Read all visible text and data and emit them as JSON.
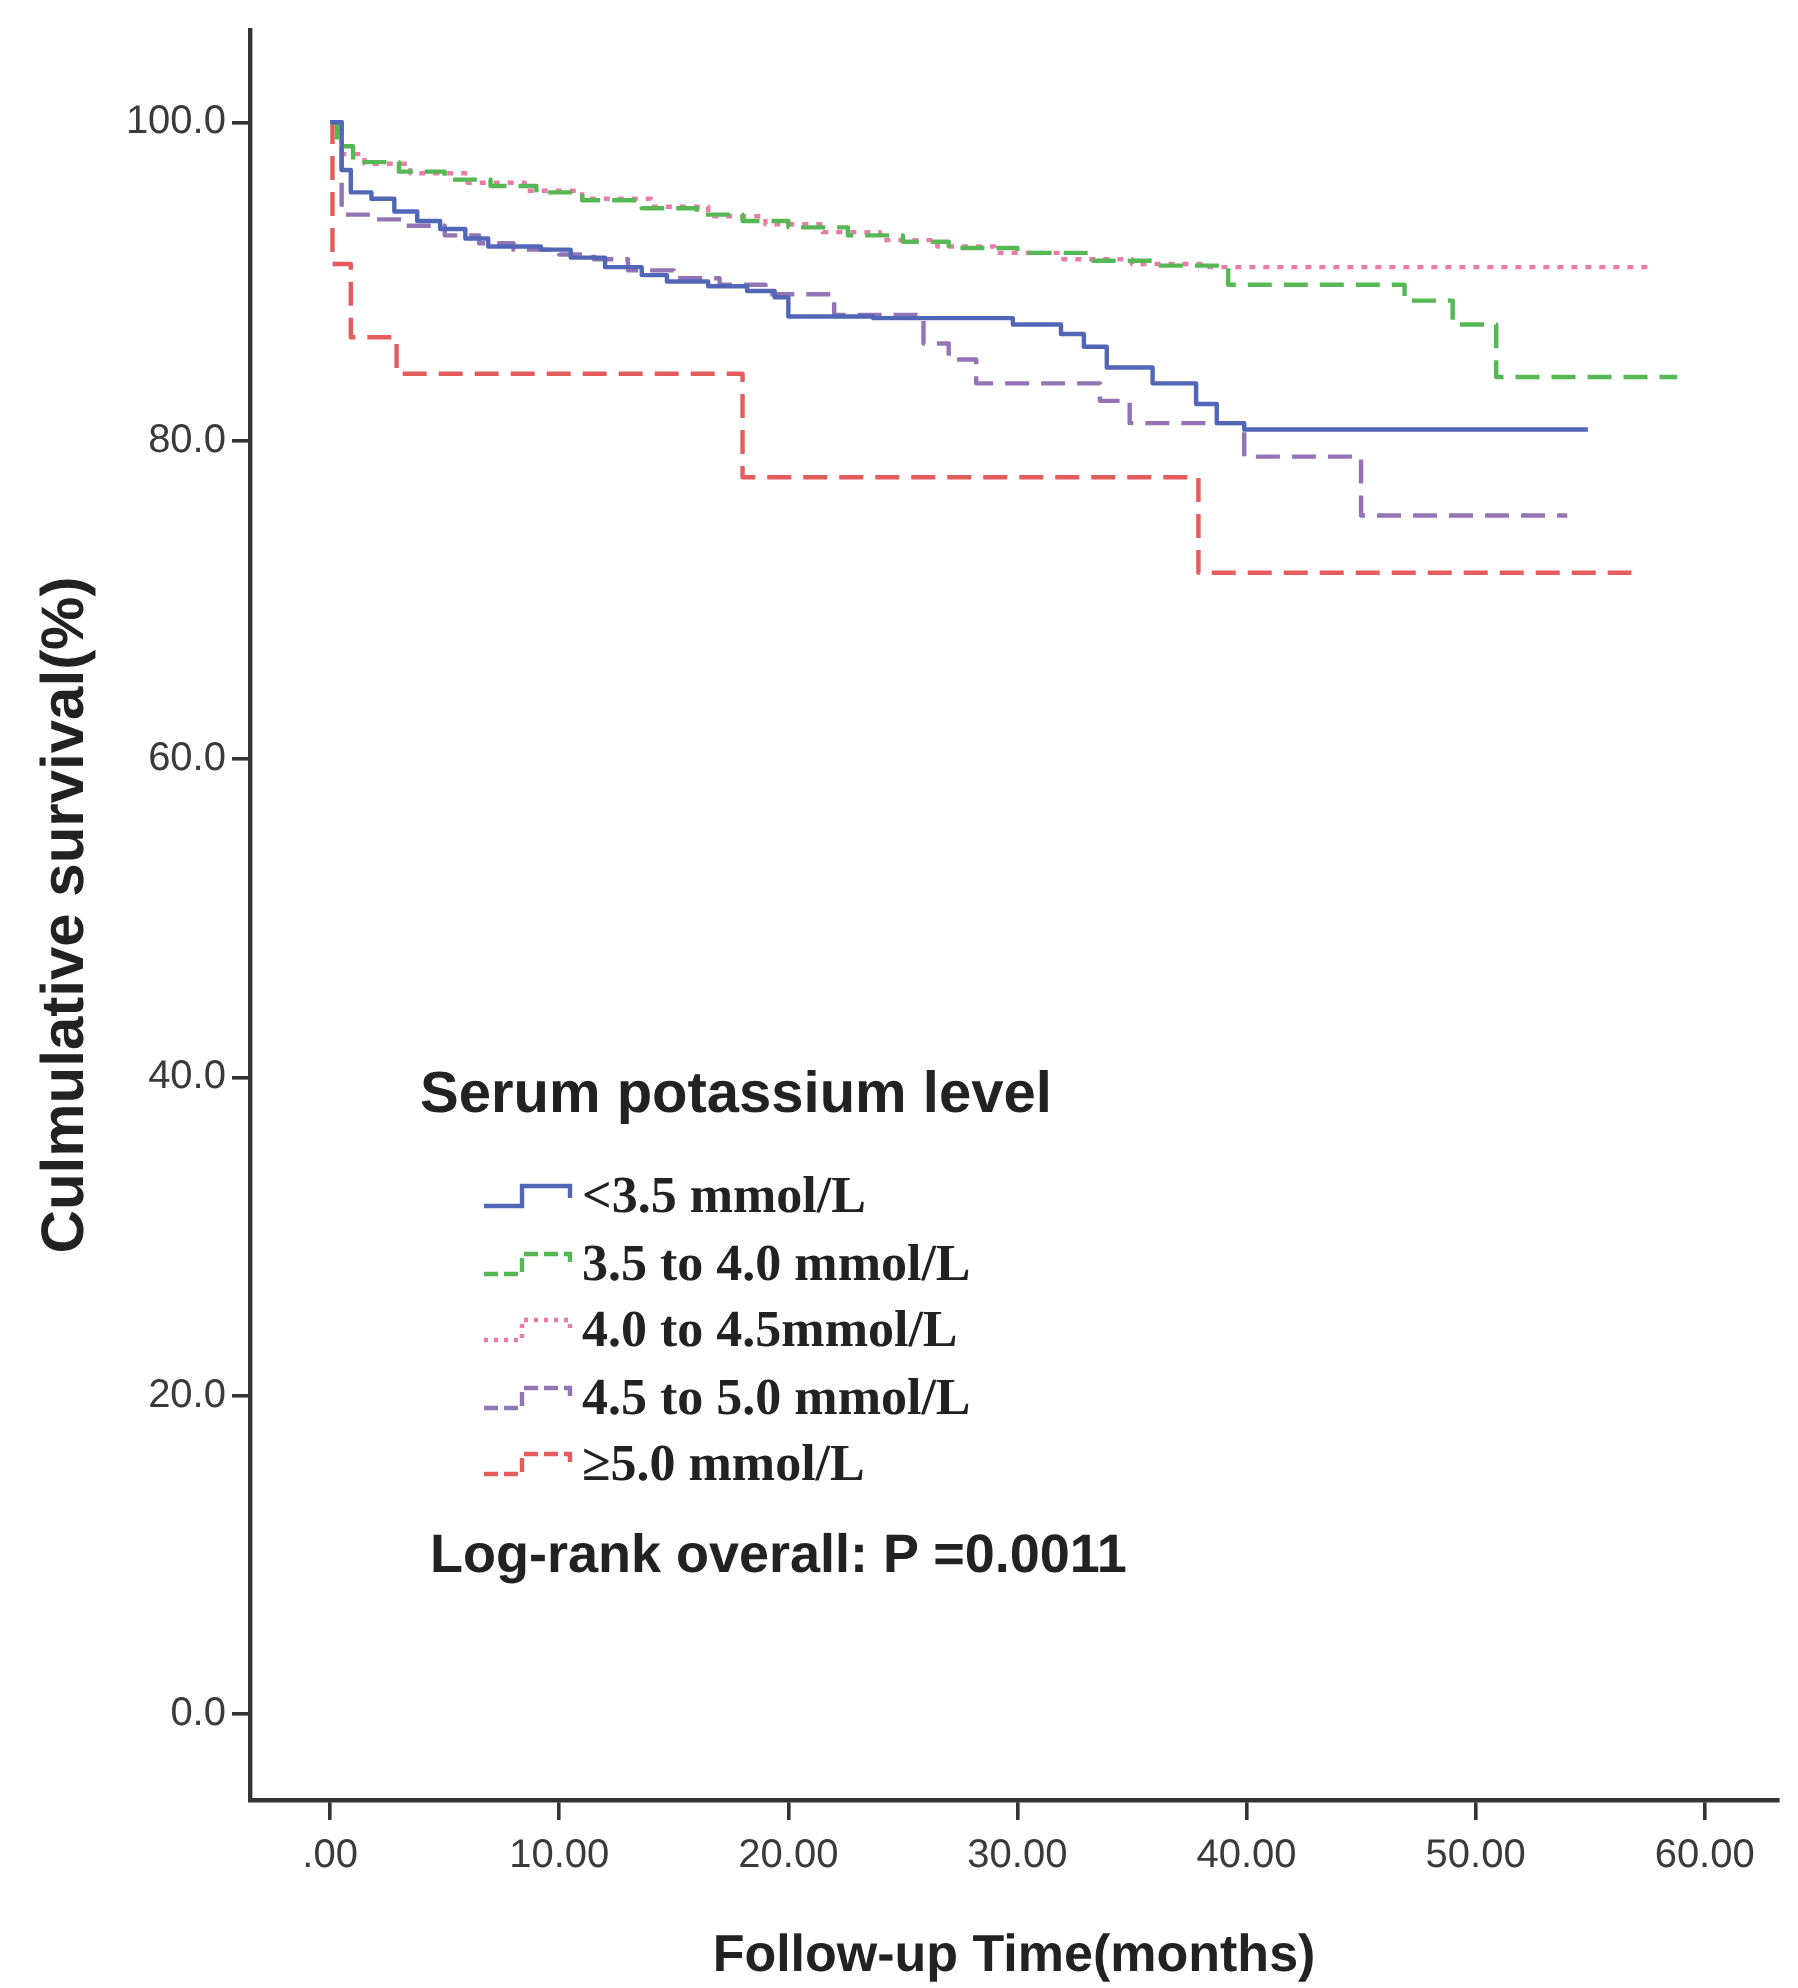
{
  "chart_data": {
    "type": "step",
    "xlabel": "Follow-up Time(months)",
    "ylabel": "Culmulative survival(%)",
    "legend_title": "Serum potassium level",
    "legend": "bottom left",
    "marker": "none",
    "annotations": [
      "Log-rank overall: P =0.0011"
    ],
    "xlim": [
      -3.5,
      63.2
    ],
    "ylim": [
      -5.4,
      105.8
    ],
    "xticks": [
      {
        "value": 0,
        "label": ".00"
      },
      {
        "value": 10,
        "label": "10.00"
      },
      {
        "value": 20,
        "label": "20.00"
      },
      {
        "value": 30,
        "label": "30.00"
      },
      {
        "value": 40,
        "label": "40.00"
      },
      {
        "value": 50,
        "label": "50.00"
      },
      {
        "value": 60,
        "label": "60.00"
      }
    ],
    "yticks": [
      {
        "value": 0,
        "label": "0.0"
      },
      {
        "value": 20,
        "label": "20.0"
      },
      {
        "value": 40,
        "label": "40.0"
      },
      {
        "value": 60,
        "label": "60.0"
      },
      {
        "value": 80,
        "label": "80.0"
      },
      {
        "value": 100,
        "label": "100.0"
      }
    ],
    "series": [
      {
        "name": "<3.5 mmol/L",
        "color": "#5266b8",
        "line_style": "solid",
        "x": [
          0,
          0.5,
          0.9,
          1.8,
          2.8,
          3.8,
          4.8,
          5.9,
          6.9,
          9.2,
          10.5,
          12.0,
          13.6,
          14.7,
          16.5,
          18.2,
          19.4,
          20.0,
          23.7,
          29.8,
          31.9,
          32.9,
          33.9,
          35.9,
          37.8,
          38.7,
          39.9,
          54.9
        ],
        "values": [
          100,
          97.0,
          95.6,
          95.2,
          94.4,
          93.8,
          93.3,
          92.7,
          92.2,
          92.0,
          91.5,
          90.9,
          90.4,
          90.0,
          89.7,
          89.4,
          89.0,
          87.8,
          87.7,
          87.3,
          86.7,
          85.9,
          84.6,
          83.6,
          82.3,
          81.1,
          80.7,
          80.7
        ]
      },
      {
        "name": "3.5 to 4.0 mmol/L",
        "color": "#55b855",
        "line_style": "dashed",
        "x": [
          0,
          0.3,
          1.0,
          3.0,
          5.0,
          7.0,
          9.0,
          11.0,
          13.6,
          16.0,
          18.0,
          20.0,
          22.6,
          25.0,
          27.0,
          30.0,
          33.3,
          36.0,
          39.2,
          46.9,
          49.0,
          50.9,
          58.8
        ],
        "values": [
          100,
          98.5,
          97.5,
          96.9,
          96.4,
          96.0,
          95.6,
          95.1,
          94.6,
          94.2,
          93.8,
          93.4,
          92.9,
          92.5,
          92.1,
          91.8,
          91.3,
          91.0,
          89.8,
          88.8,
          87.3,
          84.0,
          84.0
        ]
      },
      {
        "name": "4.0 to 4.5mmol/L",
        "color": "#e87ca6",
        "line_style": "dotted",
        "x": [
          0,
          0.5,
          1.5,
          3.5,
          6.0,
          8.5,
          11.0,
          14.0,
          16.5,
          19.0,
          21.5,
          24.0,
          26.5,
          29.0,
          32.0,
          35.0,
          38.0,
          57.5
        ],
        "values": [
          100,
          98.0,
          97.4,
          96.8,
          96.2,
          95.7,
          95.2,
          94.7,
          94.1,
          93.6,
          93.1,
          92.6,
          92.2,
          91.8,
          91.4,
          91.1,
          90.9,
          90.9
        ]
      },
      {
        "name": "4.5 to 5.0 mmol/L",
        "color": "#9374b4",
        "line_style": "dashed",
        "x": [
          0,
          0.5,
          2.0,
          3.3,
          5.0,
          6.5,
          8.0,
          10.0,
          11.5,
          13.0,
          15.0,
          17.0,
          19.0,
          22.0,
          25.9,
          27.0,
          28.2,
          33.6,
          34.9,
          39.9,
          45.0,
          54.0
        ],
        "values": [
          100,
          94.2,
          93.9,
          93.5,
          92.9,
          92.4,
          92.0,
          91.7,
          91.4,
          90.7,
          90.2,
          89.8,
          89.2,
          87.9,
          86.1,
          85.1,
          83.6,
          82.5,
          81.1,
          79.0,
          75.3,
          75.3
        ]
      },
      {
        "name": "≥5.0 mmol/L",
        "color": "#e45c5c",
        "line_style": "dashed",
        "x": [
          0,
          0.1,
          0.9,
          2.9,
          18.0,
          37.9,
          56.8
        ],
        "values": [
          100,
          91.1,
          86.5,
          84.2,
          77.7,
          71.7,
          71.7
        ]
      }
    ]
  }
}
